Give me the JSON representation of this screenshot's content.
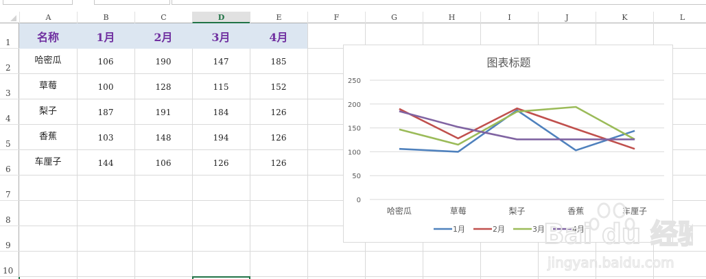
{
  "sheet": {
    "columns": [
      "A",
      "B",
      "C",
      "D",
      "E",
      "F",
      "G",
      "H",
      "I",
      "J",
      "K",
      "L"
    ],
    "active_column": "D",
    "rows": [
      "1",
      "2",
      "3",
      "4",
      "5",
      "6",
      "7",
      "8",
      "9",
      "10"
    ]
  },
  "table": {
    "headers": [
      "名称",
      "1月",
      "2月",
      "3月",
      "4月"
    ],
    "header_color": "#7030a0",
    "header_fill": "#dce6f1",
    "rows": [
      [
        "哈密瓜",
        "106",
        "190",
        "147",
        "185"
      ],
      [
        "草莓",
        "100",
        "128",
        "115",
        "152"
      ],
      [
        "梨子",
        "187",
        "191",
        "184",
        "126"
      ],
      [
        "香蕉",
        "103",
        "148",
        "194",
        "126"
      ],
      [
        "车厘子",
        "144",
        "106",
        "126",
        "126"
      ]
    ]
  },
  "chart": {
    "title": "图表标题",
    "y_ticks": [
      "250",
      "200",
      "150",
      "100",
      "50",
      "0"
    ],
    "categories": [
      "哈密瓜",
      "草莓",
      "梨子",
      "香蕉",
      "车厘子"
    ],
    "legend": [
      "1月",
      "2月",
      "3月",
      "4月"
    ]
  },
  "chart_data": {
    "type": "line",
    "title": "图表标题",
    "categories": [
      "哈密瓜",
      "草莓",
      "梨子",
      "香蕉",
      "车厘子"
    ],
    "series": [
      {
        "name": "1月",
        "color": "#4f81bd",
        "values": [
          106,
          100,
          187,
          103,
          144
        ]
      },
      {
        "name": "2月",
        "color": "#c0504d",
        "values": [
          190,
          128,
          191,
          148,
          106
        ]
      },
      {
        "name": "3月",
        "color": "#9bbb59",
        "values": [
          147,
          115,
          184,
          194,
          126
        ]
      },
      {
        "name": "4月",
        "color": "#8064a2",
        "values": [
          185,
          152,
          126,
          126,
          126
        ]
      }
    ],
    "xlabel": "",
    "ylabel": "",
    "ylim": [
      0,
      250
    ],
    "y_ticks": [
      0,
      50,
      100,
      150,
      200,
      250
    ],
    "grid": true,
    "legend_position": "bottom"
  },
  "watermark": {
    "brand": "Bai du 经验",
    "url": "jingyan.baidu.com"
  }
}
